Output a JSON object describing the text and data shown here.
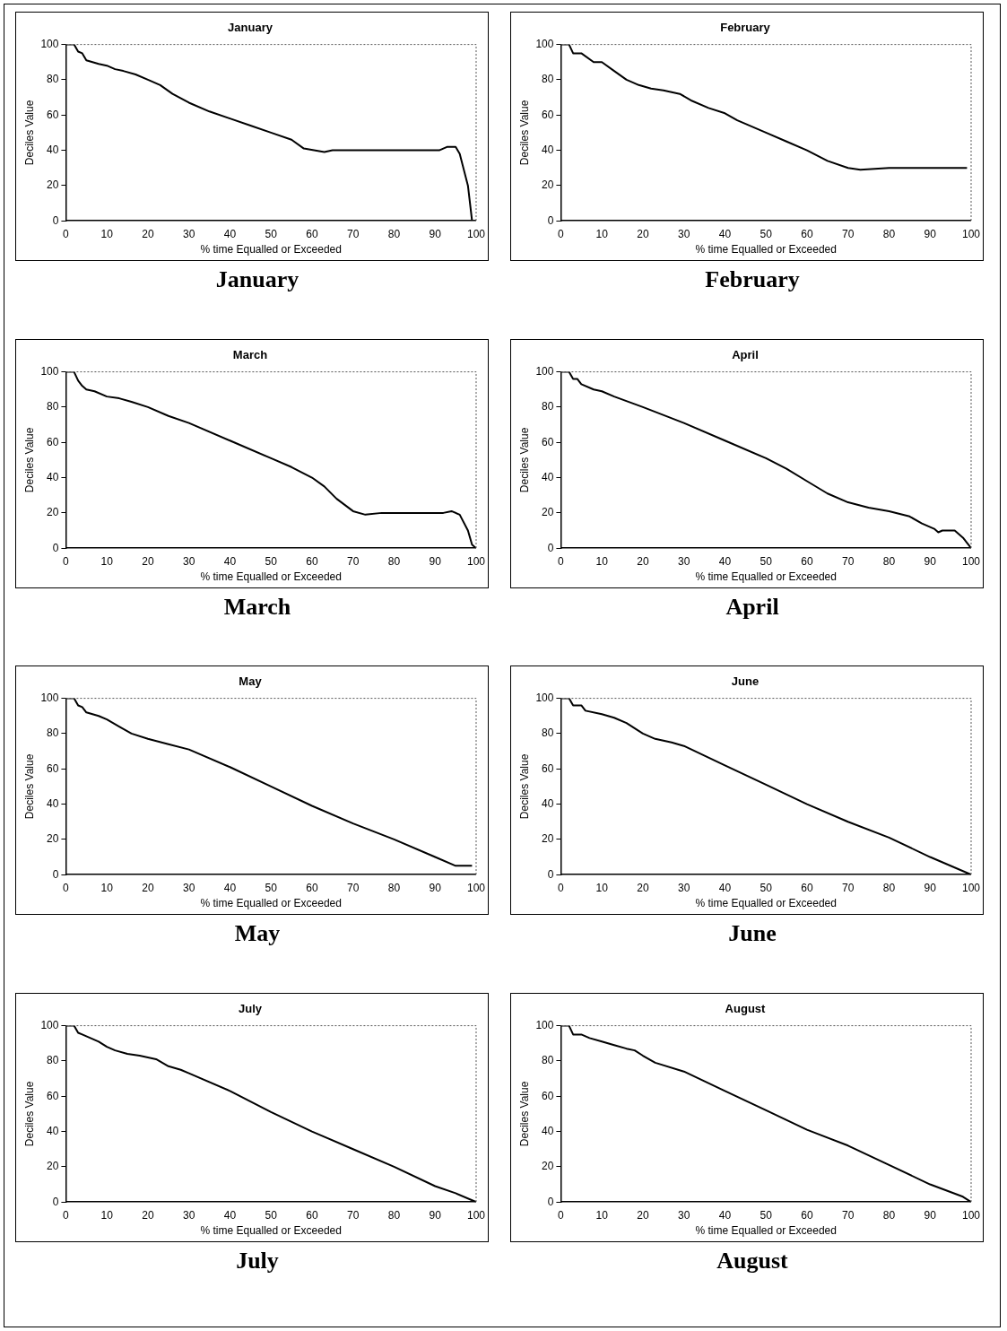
{
  "chart_data": [
    {
      "type": "line",
      "title": "January",
      "xlabel": "% time Equalled or Exceeded",
      "ylabel": "Deciles Value",
      "annotations": [
        "January"
      ],
      "xlim": [
        0,
        100
      ],
      "ylim": [
        0,
        100
      ],
      "xticks": [
        0,
        10,
        20,
        30,
        40,
        50,
        60,
        70,
        80,
        90,
        100
      ],
      "yticks": [
        0,
        20,
        40,
        60,
        80,
        100
      ],
      "x": [
        0,
        2,
        3,
        4,
        5,
        8,
        10,
        12,
        14,
        17,
        20,
        23,
        26,
        30,
        35,
        40,
        45,
        50,
        55,
        58,
        63,
        65,
        80,
        91,
        93,
        95,
        96,
        98,
        99
      ],
      "series": [
        {
          "color": "#000000",
          "values": [
            100,
            100,
            96,
            95,
            91,
            89,
            88,
            86,
            85,
            83,
            80,
            77,
            72,
            67,
            62,
            58,
            54,
            50,
            46,
            41,
            39,
            40,
            40,
            40,
            42,
            42,
            38,
            20,
            0
          ]
        }
      ]
    },
    {
      "type": "line",
      "title": "February",
      "xlabel": "% time Equalled or Exceeded",
      "ylabel": "Deciles Value",
      "annotations": [
        "February"
      ],
      "xlim": [
        0,
        100
      ],
      "ylim": [
        0,
        100
      ],
      "xticks": [
        0,
        10,
        20,
        30,
        40,
        50,
        60,
        70,
        80,
        90,
        100
      ],
      "yticks": [
        0,
        20,
        40,
        60,
        80,
        100
      ],
      "x": [
        0,
        2,
        3,
        5,
        8,
        10,
        13,
        16,
        19,
        22,
        25,
        29,
        32,
        36,
        40,
        43,
        50,
        55,
        60,
        65,
        70,
        73,
        80,
        99
      ],
      "series": [
        {
          "color": "#000000",
          "values": [
            100,
            100,
            95,
            95,
            90,
            90,
            85,
            80,
            77,
            75,
            74,
            72,
            68,
            64,
            61,
            57,
            50,
            45,
            40,
            34,
            30,
            29,
            30,
            30
          ]
        }
      ]
    },
    {
      "type": "line",
      "title": "March",
      "xlabel": "% time Equalled or Exceeded",
      "ylabel": "Deciles Value",
      "annotations": [
        "March"
      ],
      "xlim": [
        0,
        100
      ],
      "ylim": [
        0,
        100
      ],
      "xticks": [
        0,
        10,
        20,
        30,
        40,
        50,
        60,
        70,
        80,
        90,
        100
      ],
      "yticks": [
        0,
        20,
        40,
        60,
        80,
        100
      ],
      "x": [
        0,
        2,
        3,
        4,
        5,
        7,
        10,
        13,
        16,
        20,
        25,
        30,
        40,
        50,
        55,
        60,
        63,
        66,
        70,
        73,
        77,
        85,
        92,
        94,
        96,
        98,
        99,
        100
      ],
      "series": [
        {
          "color": "#000000",
          "values": [
            100,
            100,
            95,
            92,
            90,
            89,
            86,
            85,
            83,
            80,
            75,
            71,
            61,
            51,
            46,
            40,
            35,
            28,
            21,
            19,
            20,
            20,
            20,
            21,
            19,
            10,
            2,
            0
          ]
        }
      ]
    },
    {
      "type": "line",
      "title": "April",
      "xlabel": "% time Equalled or Exceeded",
      "ylabel": "Deciles Value",
      "annotations": [
        "April"
      ],
      "xlim": [
        0,
        100
      ],
      "ylim": [
        0,
        100
      ],
      "xticks": [
        0,
        10,
        20,
        30,
        40,
        50,
        60,
        70,
        80,
        90,
        100
      ],
      "yticks": [
        0,
        20,
        40,
        60,
        80,
        100
      ],
      "x": [
        0,
        2,
        3,
        4,
        5,
        8,
        10,
        13,
        20,
        30,
        40,
        50,
        55,
        60,
        65,
        70,
        75,
        80,
        85,
        88,
        91,
        92,
        93,
        96,
        98,
        100
      ],
      "series": [
        {
          "color": "#000000",
          "values": [
            100,
            100,
            96,
            96,
            93,
            90,
            89,
            86,
            80,
            71,
            61,
            51,
            45,
            38,
            31,
            26,
            23,
            21,
            18,
            14,
            11,
            9,
            10,
            10,
            6,
            0
          ]
        }
      ]
    },
    {
      "type": "line",
      "title": "May",
      "xlabel": "% time Equalled or Exceeded",
      "ylabel": "Deciles Value",
      "annotations": [
        "May"
      ],
      "xlim": [
        0,
        100
      ],
      "ylim": [
        0,
        100
      ],
      "xticks": [
        0,
        10,
        20,
        30,
        40,
        50,
        60,
        70,
        80,
        90,
        100
      ],
      "yticks": [
        0,
        20,
        40,
        60,
        80,
        100
      ],
      "x": [
        0,
        2,
        3,
        4,
        5,
        8,
        10,
        13,
        16,
        20,
        25,
        30,
        40,
        50,
        60,
        70,
        80,
        90,
        95,
        99
      ],
      "series": [
        {
          "color": "#000000",
          "values": [
            100,
            100,
            96,
            95,
            92,
            90,
            88,
            84,
            80,
            77,
            74,
            71,
            61,
            50,
            39,
            29,
            20,
            10,
            5,
            5
          ]
        }
      ]
    },
    {
      "type": "line",
      "title": "June",
      "xlabel": "% time Equalled or Exceeded",
      "ylabel": "Deciles Value",
      "annotations": [
        "June"
      ],
      "xlim": [
        0,
        100
      ],
      "ylim": [
        0,
        100
      ],
      "xticks": [
        0,
        10,
        20,
        30,
        40,
        50,
        60,
        70,
        80,
        90,
        100
      ],
      "yticks": [
        0,
        20,
        40,
        60,
        80,
        100
      ],
      "x": [
        0,
        2,
        3,
        5,
        6,
        10,
        13,
        16,
        20,
        23,
        27,
        30,
        40,
        50,
        60,
        70,
        80,
        90,
        100
      ],
      "series": [
        {
          "color": "#000000",
          "values": [
            100,
            100,
            96,
            96,
            93,
            91,
            89,
            86,
            80,
            77,
            75,
            73,
            62,
            51,
            40,
            30,
            21,
            10,
            0
          ]
        }
      ]
    },
    {
      "type": "line",
      "title": "July",
      "xlabel": "% time Equalled or Exceeded",
      "ylabel": "Deciles Value",
      "annotations": [
        "July"
      ],
      "xlim": [
        0,
        100
      ],
      "ylim": [
        0,
        100
      ],
      "xticks": [
        0,
        10,
        20,
        30,
        40,
        50,
        60,
        70,
        80,
        90,
        100
      ],
      "yticks": [
        0,
        20,
        40,
        60,
        80,
        100
      ],
      "x": [
        0,
        2,
        3,
        4,
        6,
        8,
        10,
        12,
        15,
        18,
        20,
        22,
        25,
        28,
        30,
        40,
        50,
        60,
        70,
        80,
        90,
        95,
        100
      ],
      "series": [
        {
          "color": "#000000",
          "values": [
            100,
            100,
            96,
            95,
            93,
            91,
            88,
            86,
            84,
            83,
            82,
            81,
            77,
            75,
            73,
            63,
            51,
            40,
            30,
            20,
            9,
            5,
            0
          ]
        }
      ]
    },
    {
      "type": "line",
      "title": "August",
      "xlabel": "% time Equalled or Exceeded",
      "ylabel": "Deciles Value",
      "annotations": [
        "August"
      ],
      "xlim": [
        0,
        100
      ],
      "ylim": [
        0,
        100
      ],
      "xticks": [
        0,
        10,
        20,
        30,
        40,
        50,
        60,
        70,
        80,
        90,
        100
      ],
      "yticks": [
        0,
        20,
        40,
        60,
        80,
        100
      ],
      "x": [
        0,
        2,
        3,
        5,
        7,
        10,
        13,
        16,
        18,
        20,
        23,
        30,
        40,
        50,
        60,
        70,
        80,
        90,
        98,
        100
      ],
      "series": [
        {
          "color": "#000000",
          "values": [
            100,
            100,
            95,
            95,
            93,
            91,
            89,
            87,
            86,
            83,
            79,
            74,
            63,
            52,
            41,
            32,
            21,
            10,
            3,
            0
          ]
        }
      ]
    }
  ]
}
